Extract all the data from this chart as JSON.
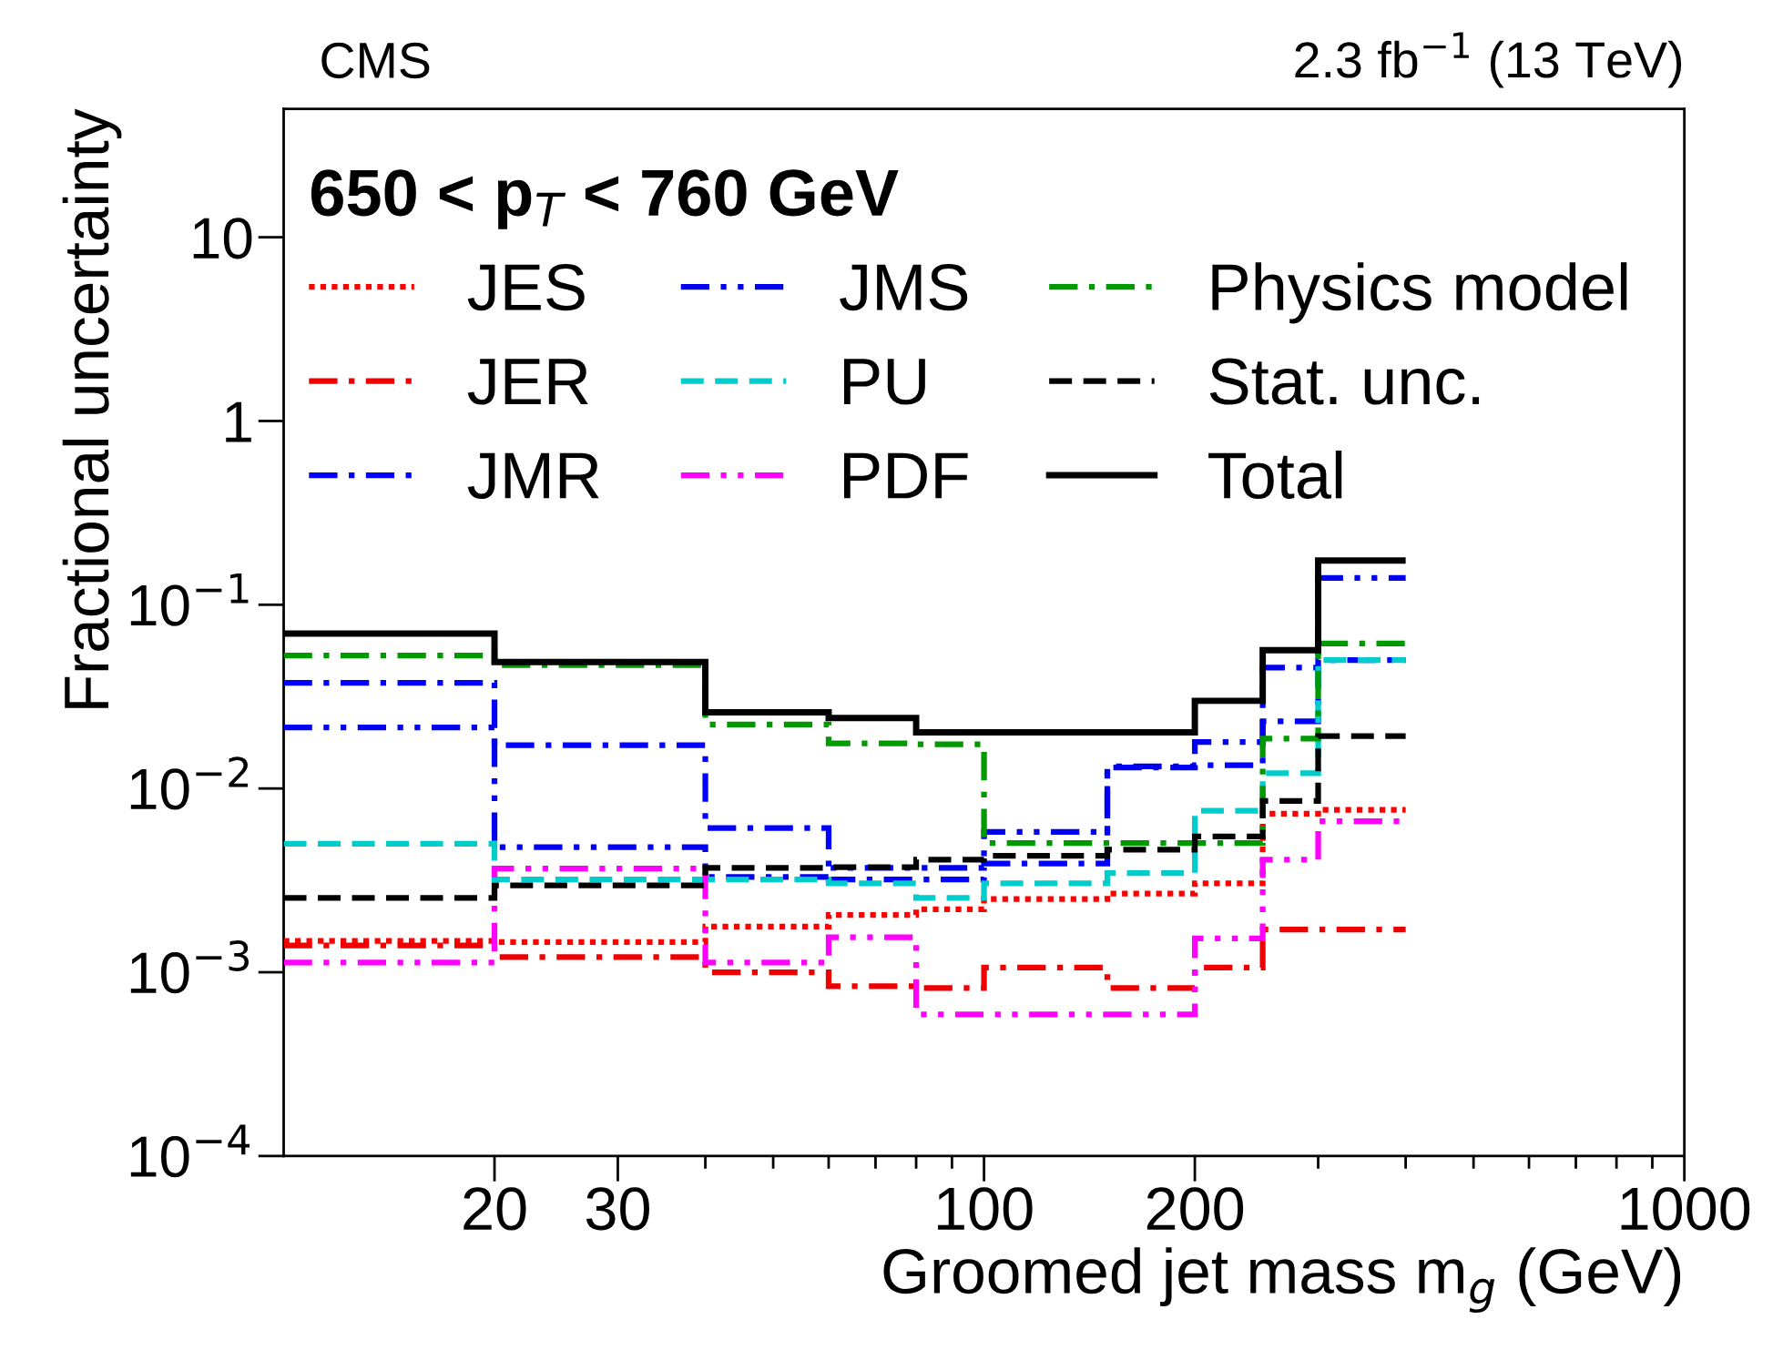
{
  "chart_data": {
    "type": "histogram",
    "xlabel": "Groomed jet mass m$_{g}$ (GeV)",
    "ylabel": "Fractional uncertainty",
    "legend_title": "650 < p$_{T}$ < 760 GeV",
    "annotations": [
      "CMS",
      "2.3 fb$^{−1}$ (13 TeV)"
    ],
    "bins": [
      10,
      20,
      40,
      60,
      80,
      100,
      150,
      200,
      250,
      300,
      400
    ],
    "series": [
      {
        "name": "JES",
        "color": "#ff0000",
        "line_style": "dotted",
        "values": [
          0.00148,
          0.00146,
          0.00177,
          0.00205,
          0.0022,
          0.0025,
          0.00268,
          0.00305,
          0.0073,
          0.00766
        ]
      },
      {
        "name": "JER",
        "color": "#ee0000",
        "line_style": "dashdot",
        "values": [
          0.0014,
          0.00121,
          0.001,
          0.00084,
          0.00082,
          0.00106,
          0.00082,
          0.00106,
          0.00171,
          0.00171
        ]
      },
      {
        "name": "JMR",
        "color": "#0000ff",
        "line_style": "dashdot",
        "values": [
          0.0376,
          0.0172,
          0.0061,
          0.0032,
          0.0032,
          0.0039,
          0.013,
          0.0134,
          0.0232,
          0.05
        ]
      },
      {
        "name": "JMS",
        "color": "#0000ee",
        "line_style": "dashdotdot",
        "values": [
          0.0215,
          0.0048,
          0.0033,
          0.0037,
          0.0037,
          0.0058,
          0.0132,
          0.0179,
          0.0455,
          0.14
        ]
      },
      {
        "name": "PU",
        "color": "#00cccc",
        "line_style": "dashed",
        "values": [
          0.005,
          0.0032,
          0.0032,
          0.00305,
          0.00254,
          0.00305,
          0.00346,
          0.00757,
          0.0121,
          0.05
        ]
      },
      {
        "name": "PDF",
        "color": "#ff00ff",
        "line_style": "dashdotdot",
        "values": [
          0.00113,
          0.00367,
          0.00113,
          0.00155,
          0.00059,
          0.00059,
          0.00059,
          0.00153,
          0.0041,
          0.00664
        ]
      },
      {
        "name": "Physics model",
        "color": "#009900",
        "line_style": "dashdot",
        "values": [
          0.0529,
          0.047,
          0.0223,
          0.0176,
          0.0174,
          0.00505,
          0.00505,
          0.00505,
          0.0187,
          0.0615
        ]
      },
      {
        "name": "Stat. unc.",
        "color": "#000000",
        "line_style": "dashed",
        "values": [
          0.00254,
          0.00297,
          0.0037,
          0.00373,
          0.0041,
          0.0043,
          0.00465,
          0.00548,
          0.00855,
          0.0193
        ]
      },
      {
        "name": "Total",
        "color": "#000000",
        "line_style": "solid",
        "values": [
          0.0697,
          0.0488,
          0.026,
          0.0242,
          0.0202,
          0.0202,
          0.0202,
          0.03,
          0.0566,
          0.174
        ]
      }
    ],
    "log": "xy",
    "grid": false,
    "legend": "top",
    "xlim": [
      10,
      1000
    ],
    "ylim": [
      0.0001,
      50
    ],
    "xticks": [
      {
        "value": 20,
        "label": "20"
      },
      {
        "value": 30,
        "label": "30"
      },
      {
        "value": 40,
        "label": null
      },
      {
        "value": 50,
        "label": null
      },
      {
        "value": 60,
        "label": null
      },
      {
        "value": 70,
        "label": null
      },
      {
        "value": 80,
        "label": null
      },
      {
        "value": 90,
        "label": null
      },
      {
        "value": 100,
        "label": "100"
      },
      {
        "value": 200,
        "label": "200"
      },
      {
        "value": 300,
        "label": null
      },
      {
        "value": 400,
        "label": null
      },
      {
        "value": 500,
        "label": null
      },
      {
        "value": 600,
        "label": null
      },
      {
        "value": 700,
        "label": null
      },
      {
        "value": 800,
        "label": null
      },
      {
        "value": 900,
        "label": null
      },
      {
        "value": 1000,
        "label": "1000"
      }
    ],
    "yticks": [
      {
        "value": 0.0001,
        "label": "10$^{−4}$"
      },
      {
        "value": 0.001,
        "label": "10$^{−3}$"
      },
      {
        "value": 0.01,
        "label": "10$^{−2}$"
      },
      {
        "value": 0.1,
        "label": "10$^{−1}$"
      },
      {
        "value": 1,
        "label": "1"
      },
      {
        "value": 10,
        "label": "10"
      }
    ]
  }
}
